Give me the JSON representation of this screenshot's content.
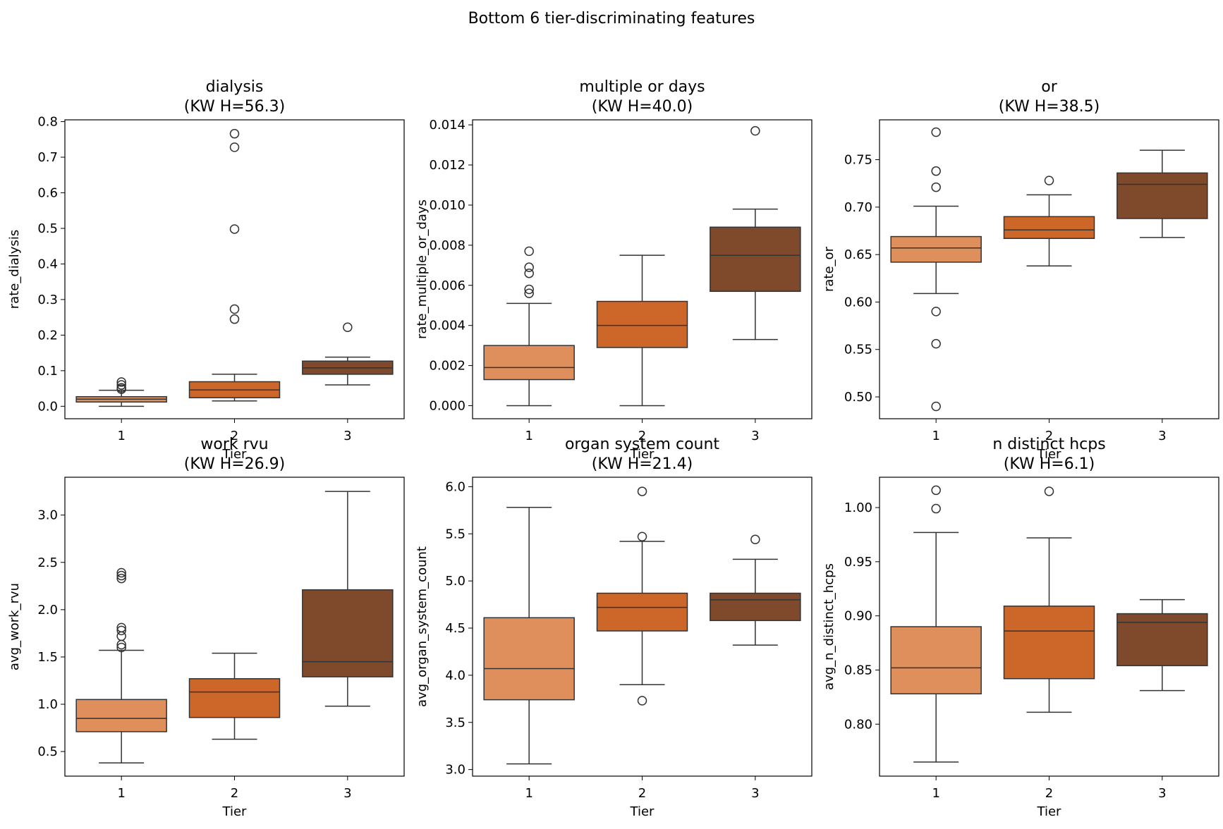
{
  "figure_title": "Bottom 6 tier-discriminating features",
  "colors": {
    "tier1": "#DF8F5C",
    "tier2": "#CC6629",
    "tier3": "#7F4A2C",
    "line": "#333333"
  },
  "chart_data": [
    {
      "type": "box",
      "title_line1": "dialysis",
      "title_line2": "(KW H=56.3)",
      "xlabel": "Tier",
      "ylabel": "rate_dialysis",
      "categories": [
        "1",
        "2",
        "3"
      ],
      "ylim": [
        -0.035,
        0.805
      ],
      "yticks": [
        0.0,
        0.1,
        0.2,
        0.3,
        0.4,
        0.5,
        0.6,
        0.7,
        0.8
      ],
      "ytick_labels": [
        "0.0",
        "0.1",
        "0.2",
        "0.3",
        "0.4",
        "0.5",
        "0.6",
        "0.7",
        "0.8"
      ],
      "boxes": [
        {
          "tier": "1",
          "whislo": 0.0,
          "q1": 0.012,
          "med": 0.02,
          "q3": 0.027,
          "whishi": 0.045,
          "fliers": [
            0.048,
            0.052,
            0.06,
            0.068
          ]
        },
        {
          "tier": "2",
          "whislo": 0.015,
          "q1": 0.024,
          "med": 0.046,
          "q3": 0.069,
          "whishi": 0.09,
          "fliers": [
            0.245,
            0.273,
            0.498,
            0.728,
            0.766
          ]
        },
        {
          "tier": "3",
          "whislo": 0.06,
          "q1": 0.09,
          "med": 0.108,
          "q3": 0.127,
          "whishi": 0.138,
          "fliers": [
            0.222
          ]
        }
      ]
    },
    {
      "type": "box",
      "title_line1": "multiple or days",
      "title_line2": "(KW H=40.0)",
      "xlabel": "Tier",
      "ylabel": "rate_multiple_or_days",
      "categories": [
        "1",
        "2",
        "3"
      ],
      "ylim": [
        -0.00065,
        0.01425
      ],
      "yticks": [
        0.0,
        0.002,
        0.004,
        0.006,
        0.008,
        0.01,
        0.012,
        0.014
      ],
      "ytick_labels": [
        "0.000",
        "0.002",
        "0.004",
        "0.006",
        "0.008",
        "0.010",
        "0.012",
        "0.014"
      ],
      "boxes": [
        {
          "tier": "1",
          "whislo": 0.0,
          "q1": 0.0013,
          "med": 0.0019,
          "q3": 0.003,
          "whishi": 0.0051,
          "fliers": [
            0.0056,
            0.0058,
            0.0066,
            0.0069,
            0.0077
          ]
        },
        {
          "tier": "2",
          "whislo": 0.0,
          "q1": 0.0029,
          "med": 0.004,
          "q3": 0.0052,
          "whishi": 0.0075,
          "fliers": []
        },
        {
          "tier": "3",
          "whislo": 0.0033,
          "q1": 0.0057,
          "med": 0.0075,
          "q3": 0.0089,
          "whishi": 0.0098,
          "fliers": [
            0.0137
          ]
        }
      ]
    },
    {
      "type": "box",
      "title_line1": "or",
      "title_line2": "(KW H=38.5)",
      "xlabel": "Tier",
      "ylabel": "rate_or",
      "categories": [
        "1",
        "2",
        "3"
      ],
      "ylim": [
        0.477,
        0.792
      ],
      "yticks": [
        0.5,
        0.55,
        0.6,
        0.65,
        0.7,
        0.75
      ],
      "ytick_labels": [
        "0.50",
        "0.55",
        "0.60",
        "0.65",
        "0.70",
        "0.75"
      ],
      "boxes": [
        {
          "tier": "1",
          "whislo": 0.609,
          "q1": 0.642,
          "med": 0.657,
          "q3": 0.669,
          "whishi": 0.701,
          "fliers": [
            0.49,
            0.556,
            0.59,
            0.721,
            0.738,
            0.779
          ]
        },
        {
          "tier": "2",
          "whislo": 0.638,
          "q1": 0.667,
          "med": 0.676,
          "q3": 0.69,
          "whishi": 0.713,
          "fliers": [
            0.728
          ]
        },
        {
          "tier": "3",
          "whislo": 0.668,
          "q1": 0.688,
          "med": 0.724,
          "q3": 0.736,
          "whishi": 0.76,
          "fliers": []
        }
      ]
    },
    {
      "type": "box",
      "title_line1": "work rvu",
      "title_line2": "(KW H=26.9)",
      "xlabel": "Tier",
      "ylabel": "avg_work_rvu",
      "categories": [
        "1",
        "2",
        "3"
      ],
      "ylim": [
        0.24,
        3.4
      ],
      "yticks": [
        0.5,
        1.0,
        1.5,
        2.0,
        2.5,
        3.0
      ],
      "ytick_labels": [
        "0.5",
        "1.0",
        "1.5",
        "2.0",
        "2.5",
        "3.0"
      ],
      "boxes": [
        {
          "tier": "1",
          "whislo": 0.38,
          "q1": 0.71,
          "med": 0.85,
          "q3": 1.05,
          "whishi": 1.57,
          "fliers": [
            1.6,
            1.63,
            1.72,
            1.78,
            1.81,
            2.33,
            2.36,
            2.39
          ]
        },
        {
          "tier": "2",
          "whislo": 0.63,
          "q1": 0.86,
          "med": 1.13,
          "q3": 1.27,
          "whishi": 1.54,
          "fliers": []
        },
        {
          "tier": "3",
          "whislo": 0.98,
          "q1": 1.29,
          "med": 1.45,
          "q3": 2.21,
          "whishi": 3.25,
          "fliers": []
        }
      ]
    },
    {
      "type": "box",
      "title_line1": "organ system count",
      "title_line2": "(KW H=21.4)",
      "xlabel": "Tier",
      "ylabel": "avg_organ_system_count",
      "categories": [
        "1",
        "2",
        "3"
      ],
      "ylim": [
        2.93,
        6.1
      ],
      "yticks": [
        3.0,
        3.5,
        4.0,
        4.5,
        5.0,
        5.5,
        6.0
      ],
      "ytick_labels": [
        "3.0",
        "3.5",
        "4.0",
        "4.5",
        "5.0",
        "5.5",
        "6.0"
      ],
      "boxes": [
        {
          "tier": "1",
          "whislo": 3.06,
          "q1": 3.74,
          "med": 4.07,
          "q3": 4.61,
          "whishi": 5.78,
          "fliers": []
        },
        {
          "tier": "2",
          "whislo": 3.9,
          "q1": 4.47,
          "med": 4.72,
          "q3": 4.87,
          "whishi": 5.42,
          "fliers": [
            3.73,
            5.47,
            5.95
          ]
        },
        {
          "tier": "3",
          "whislo": 4.32,
          "q1": 4.58,
          "med": 4.8,
          "q3": 4.87,
          "whishi": 5.23,
          "fliers": [
            5.44
          ]
        }
      ]
    },
    {
      "type": "box",
      "title_line1": "n distinct hcps",
      "title_line2": "(KW H=6.1)",
      "xlabel": "Tier",
      "ylabel": "avg_n_distinct_hcps",
      "categories": [
        "1",
        "2",
        "3"
      ],
      "ylim": [
        0.752,
        1.028
      ],
      "yticks": [
        0.8,
        0.85,
        0.9,
        0.95,
        1.0
      ],
      "ytick_labels": [
        "0.80",
        "0.85",
        "0.90",
        "0.95",
        "1.00"
      ],
      "boxes": [
        {
          "tier": "1",
          "whislo": 0.765,
          "q1": 0.828,
          "med": 0.852,
          "q3": 0.89,
          "whishi": 0.977,
          "fliers": [
            0.999,
            1.016
          ]
        },
        {
          "tier": "2",
          "whislo": 0.811,
          "q1": 0.842,
          "med": 0.886,
          "q3": 0.909,
          "whishi": 0.972,
          "fliers": [
            1.015
          ]
        },
        {
          "tier": "3",
          "whislo": 0.831,
          "q1": 0.854,
          "med": 0.894,
          "q3": 0.902,
          "whishi": 0.915,
          "fliers": []
        }
      ]
    }
  ]
}
